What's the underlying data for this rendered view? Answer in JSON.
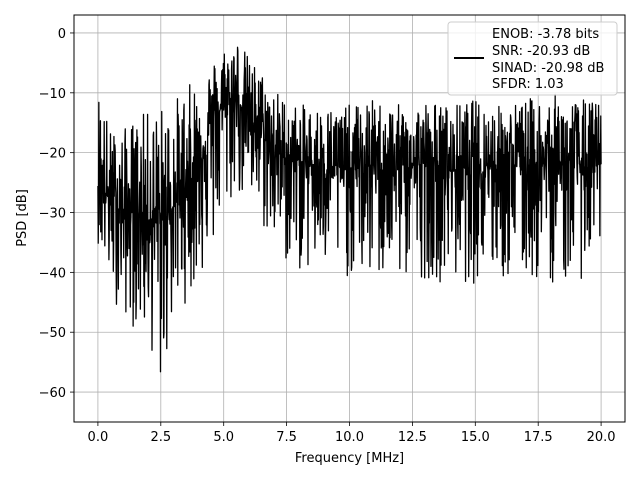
{
  "chart_data": {
    "type": "line",
    "title": "",
    "xlabel": "Frequency [MHz]",
    "ylabel": "PSD [dB]",
    "xlim": [
      -0.95,
      20.95
    ],
    "ylim": [
      -65,
      3
    ],
    "xticks": [
      0.0,
      2.5,
      5.0,
      7.5,
      10.0,
      12.5,
      15.0,
      17.5,
      20.0
    ],
    "xtick_labels": [
      "0.0",
      "2.5",
      "5.0",
      "7.5",
      "10.0",
      "12.5",
      "15.0",
      "17.5",
      "20.0"
    ],
    "yticks": [
      0,
      -10,
      -20,
      -30,
      -40,
      -50,
      -60
    ],
    "ytick_labels": [
      "0",
      "−10",
      "−20",
      "−30",
      "−40",
      "−50",
      "−60"
    ],
    "grid": true,
    "legend_position": "top-right",
    "legend": [
      "ENOB: -3.78 bits",
      "SNR: -20.93 dB",
      "SINAD: -20.98 dB",
      "SFDR: 1.03"
    ],
    "series": [
      {
        "color": "#000000",
        "envelope": {
          "x": [
            0.0,
            0.5,
            1.0,
            1.5,
            2.0,
            2.5,
            3.0,
            3.5,
            4.0,
            4.5,
            5.0,
            5.5,
            6.0,
            6.5,
            7.0,
            7.5,
            8.0,
            9.0,
            10.0,
            11.0,
            12.0,
            13.0,
            14.0,
            15.0,
            16.0,
            17.0,
            18.0,
            19.0,
            20.0
          ],
          "upper": [
            -8,
            -16,
            -16,
            -14,
            -13,
            -12,
            -11,
            -9,
            -7,
            -5,
            -2,
            0,
            -4,
            -6,
            -9,
            -11,
            -12,
            -12,
            -12,
            -11,
            -12,
            -11,
            -12,
            -11,
            -12,
            -11,
            -10,
            -11,
            -11
          ],
          "lower": [
            -35,
            -44,
            -47,
            -50,
            -51,
            -61,
            -48,
            -45,
            -42,
            -38,
            -32,
            -27,
            -30,
            -33,
            -36,
            -39,
            -40,
            -41,
            -41,
            -42,
            -42,
            -41,
            -42,
            -42,
            -42,
            -42,
            -42,
            -42,
            -38
          ],
          "center": [
            -25,
            -28,
            -30,
            -30,
            -31,
            -32,
            -29,
            -26,
            -22,
            -15,
            -12,
            -11,
            -14,
            -17,
            -20,
            -21,
            -22,
            -22,
            -23,
            -22,
            -22,
            -22,
            -23,
            -22,
            -22,
            -22,
            -22,
            -22,
            -22
          ]
        },
        "samples": 1601
      }
    ]
  }
}
